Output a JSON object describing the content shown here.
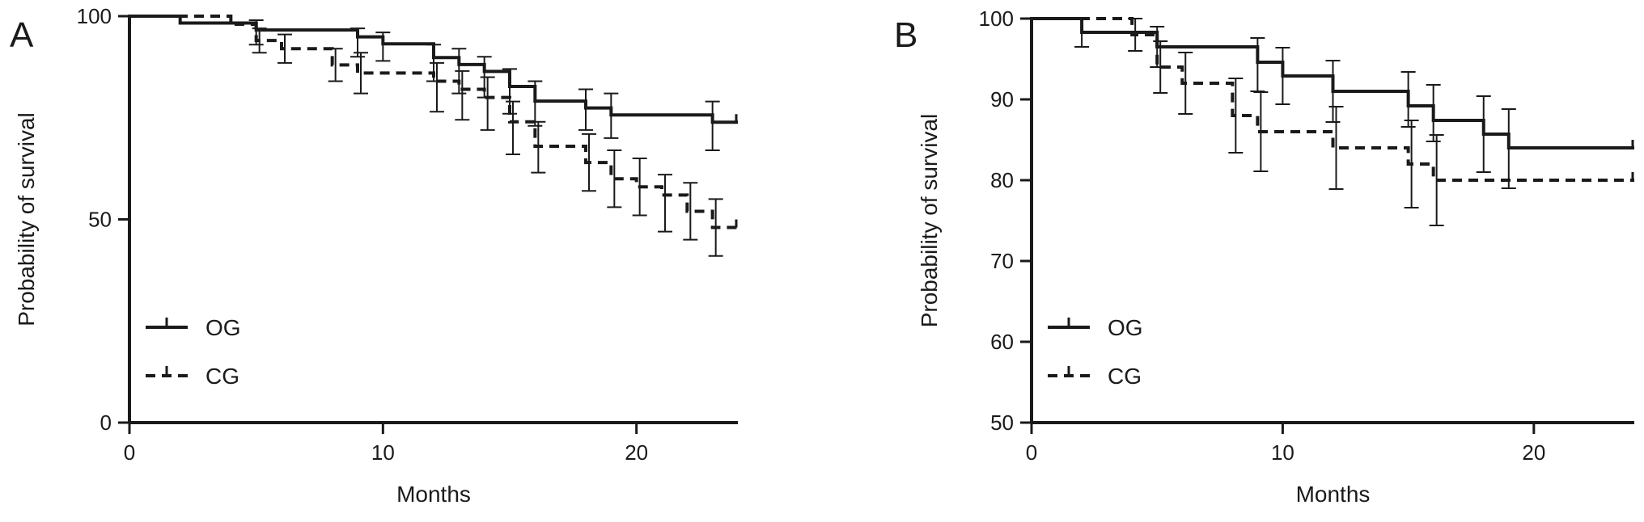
{
  "chart_data": [
    {
      "type": "line",
      "panel": "A",
      "xlabel": "Months",
      "ylabel": "Probability of survival",
      "xlim": [
        0,
        24
      ],
      "ylim": [
        0,
        100
      ],
      "xticks": [
        0,
        10,
        20
      ],
      "yticks": [
        0,
        50,
        100
      ],
      "legend_position": "bottom-left",
      "series": [
        {
          "name": "OG",
          "style": "solid",
          "x": [
            0,
            2,
            5,
            9,
            10,
            12,
            13,
            14,
            15,
            16,
            18,
            19,
            23,
            24
          ],
          "y": [
            100,
            98.3,
            96.6,
            94.9,
            93.2,
            89.8,
            88.1,
            86.4,
            82.7,
            79.1,
            77.4,
            75.7,
            73.9,
            73.9
          ],
          "ci_x": [
            5,
            9,
            10,
            12,
            13,
            14,
            15,
            16,
            18,
            19,
            23
          ],
          "ci_low": [
            93.0,
            90.0,
            89.0,
            84.0,
            81.0,
            80.0,
            76.0,
            73.0,
            72.0,
            70.0,
            67.0
          ],
          "ci_high": [
            99.0,
            97.0,
            96.0,
            93.0,
            92.0,
            90.0,
            87.0,
            84.0,
            82.0,
            81.0,
            79.0
          ],
          "censor_x": [
            24
          ]
        },
        {
          "name": "CG",
          "style": "dashed",
          "x": [
            0,
            4,
            5,
            6,
            8,
            9,
            12,
            13,
            14,
            15,
            16,
            18,
            19,
            20,
            21,
            22,
            23,
            24
          ],
          "y": [
            100,
            98,
            94,
            92,
            88,
            86,
            84,
            82,
            80,
            74,
            68,
            64,
            60,
            58,
            56,
            52,
            48,
            48
          ],
          "ci_x": [
            5,
            6,
            8,
            9,
            12,
            13,
            14,
            15,
            16,
            18,
            19,
            20,
            21,
            22,
            23
          ],
          "ci_low": [
            91.0,
            88.5,
            84.0,
            81.0,
            76.5,
            74.5,
            72.0,
            66.0,
            61.5,
            57.0,
            53.0,
            51.0,
            47.0,
            45.0,
            41.0
          ],
          "ci_high": [
            97.0,
            95.5,
            92.0,
            91.0,
            88.5,
            86.5,
            85.0,
            79.0,
            74.0,
            71.0,
            67.0,
            65.0,
            61.0,
            59.0,
            55.0
          ],
          "censor_x": [
            24
          ]
        }
      ]
    },
    {
      "type": "line",
      "panel": "B",
      "xlabel": "Months",
      "ylabel": "Probability of survival",
      "xlim": [
        0,
        24
      ],
      "ylim": [
        50,
        100
      ],
      "xticks": [
        0,
        10,
        20
      ],
      "yticks": [
        50,
        60,
        70,
        80,
        90,
        100
      ],
      "legend_position": "bottom-left",
      "series": [
        {
          "name": "OG",
          "style": "solid",
          "x": [
            0,
            2,
            5,
            9,
            10,
            12,
            15,
            16,
            18,
            19,
            24
          ],
          "y": [
            100,
            98.3,
            96.5,
            94.6,
            92.9,
            91.0,
            89.2,
            87.4,
            85.7,
            84.0,
            84.0
          ],
          "ci_x": [
            2,
            5,
            9,
            10,
            12,
            15,
            16,
            18,
            19
          ],
          "ci_low": [
            96.5,
            94.0,
            91.0,
            89.4,
            87.2,
            86.6,
            84.8,
            81.0,
            79.0
          ],
          "ci_high": [
            100,
            99.0,
            97.6,
            96.4,
            94.8,
            93.4,
            91.8,
            90.4,
            88.8
          ],
          "censor_x": [
            24
          ]
        },
        {
          "name": "CG",
          "style": "dashed",
          "x": [
            0,
            4,
            5,
            6,
            8,
            9,
            12,
            15,
            16,
            24
          ],
          "y": [
            100,
            98,
            94,
            92,
            88,
            86,
            84,
            82,
            80,
            80
          ],
          "ci_x": [
            4,
            5,
            6,
            8,
            9,
            12,
            15,
            16
          ],
          "ci_low": [
            96.0,
            90.8,
            88.2,
            83.4,
            81.1,
            78.9,
            76.6,
            74.4
          ],
          "ci_high": [
            100,
            97.2,
            95.8,
            92.6,
            90.9,
            89.1,
            87.4,
            85.6
          ],
          "censor_x": [
            24
          ]
        }
      ]
    }
  ]
}
